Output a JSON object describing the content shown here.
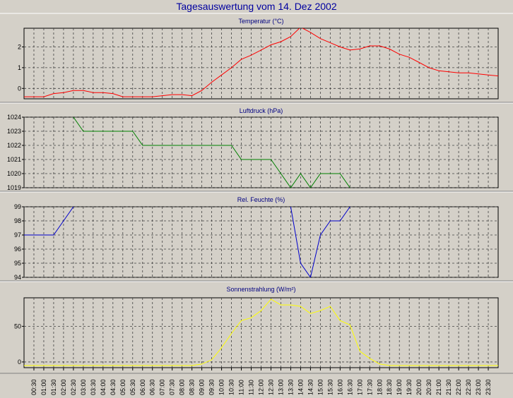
{
  "title": "Tagesauswertung vom 14. Dez 2002",
  "time_labels": [
    "00:30",
    "01:00",
    "01:30",
    "02:00",
    "02:30",
    "03:00",
    "03:30",
    "04:00",
    "04:30",
    "05:00",
    "05:30",
    "06:00",
    "06:30",
    "07:00",
    "07:30",
    "08:00",
    "08:30",
    "09:00",
    "09:30",
    "10:00",
    "10:30",
    "11:00",
    "11:30",
    "12:00",
    "12:30",
    "13:00",
    "13:30",
    "14:00",
    "14:30",
    "15:00",
    "15:30",
    "16:00",
    "16:30",
    "17:00",
    "17:30",
    "18:00",
    "18:30",
    "19:00",
    "19:30",
    "20:00",
    "20:30",
    "21:00",
    "21:30",
    "22:00",
    "22:30",
    "23:00",
    "23:30"
  ],
  "chart_data": [
    {
      "type": "line",
      "title": "Temperatur (°C)",
      "color": "#ff0000",
      "ylim": [
        -0.5,
        2.9
      ],
      "yticks": [
        0,
        1,
        2
      ],
      "values": [
        -0.4,
        -0.4,
        -0.4,
        -0.25,
        -0.2,
        -0.1,
        -0.1,
        -0.2,
        -0.2,
        -0.25,
        -0.4,
        -0.4,
        -0.4,
        -0.4,
        -0.35,
        -0.3,
        -0.3,
        -0.35,
        -0.1,
        0.3,
        0.65,
        1.0,
        1.4,
        1.6,
        1.85,
        2.1,
        2.25,
        2.5,
        2.95,
        2.7,
        2.4,
        2.2,
        2.0,
        1.85,
        1.9,
        2.05,
        2.05,
        1.9,
        1.65,
        1.5,
        1.25,
        1.0,
        0.85,
        0.8,
        0.75,
        0.75,
        0.7,
        0.65,
        0.6
      ]
    },
    {
      "type": "line",
      "title": "Luftdruck (hPa)",
      "color": "#008000",
      "ylim": [
        1019,
        1024
      ],
      "yticks": [
        1019,
        1020,
        1021,
        1022,
        1023,
        1024
      ],
      "values": [
        1024.5,
        1024.5,
        1024.5,
        1024.5,
        1024.5,
        1024,
        1023,
        1023,
        1023,
        1023,
        1023,
        1023,
        1022,
        1022,
        1022,
        1022,
        1022,
        1022,
        1022,
        1022,
        1022,
        1022,
        1021,
        1021,
        1021,
        1021,
        1020,
        1019,
        1020,
        1019,
        1020,
        1020,
        1020,
        1019,
        1018.5,
        1018.5,
        1018.5,
        1018.5,
        1018.5,
        1018.5,
        1018.5,
        1018.5,
        1018.5,
        1018.5,
        1018.5,
        1018.5,
        1018.5,
        1018.5,
        1018.5
      ]
    },
    {
      "type": "line",
      "title": "Rel. Feuchte (%)",
      "color": "#0000cc",
      "ylim": [
        94,
        99
      ],
      "yticks": [
        94,
        95,
        96,
        97,
        98,
        99
      ],
      "values": [
        97,
        97,
        97,
        97,
        98,
        99,
        99.5,
        99.5,
        99.5,
        99.5,
        99.5,
        99.5,
        99.5,
        99.5,
        99.5,
        99.5,
        99.5,
        99.5,
        99.5,
        99.5,
        99.5,
        99.5,
        99.5,
        99.5,
        99.5,
        99.5,
        99.5,
        99,
        95,
        94,
        97,
        98,
        98,
        99,
        99.5,
        99.5,
        99.5,
        99.5,
        99.5,
        99.5,
        99.5,
        99.5,
        99.5,
        99.5,
        99.5,
        99.5,
        99.5,
        99.5,
        99.5
      ]
    },
    {
      "type": "line",
      "title": "Sonnenstrahlung (W/m²)",
      "color": "#ffff00",
      "ylim": [
        -8,
        90
      ],
      "yticks": [
        0,
        50
      ],
      "values": [
        -5,
        -5,
        -5,
        -5,
        -5,
        -5,
        -5,
        -5,
        -5,
        -5,
        -5,
        -5,
        -5,
        -5,
        -5,
        -5,
        -5,
        -5,
        -3,
        3,
        20,
        40,
        58,
        62,
        72,
        88,
        80,
        80,
        78,
        68,
        72,
        78,
        58,
        52,
        15,
        5,
        -3,
        -5,
        -5,
        -5,
        -5,
        -5,
        -5,
        -5,
        -5,
        -5,
        -5,
        -5,
        -5
      ]
    }
  ]
}
